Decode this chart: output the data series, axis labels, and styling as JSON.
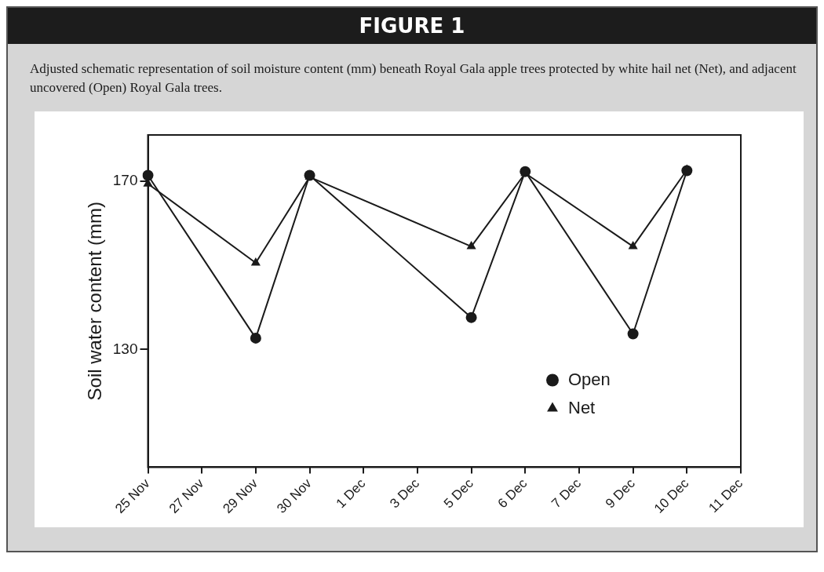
{
  "chart_data": {
    "type": "line",
    "title": "FIGURE 1",
    "subtitle": "Adjusted schematic representation of soil moisture content (mm) beneath Royal Gala apple trees protected by white hail net (Net), and adjacent uncovered (Open) Royal Gala trees.",
    "ylabel": "Soil water content (mm)",
    "categories": [
      "25 Nov",
      "27 Nov",
      "29 Nov",
      "30 Nov",
      "1 Dec",
      "3 Dec",
      "5 Dec",
      "6 Dec",
      "7 Dec",
      "9 Dec",
      "10 Dec",
      "11 Dec"
    ],
    "ylim": [
      102,
      181
    ],
    "yticks": [
      130,
      170
    ],
    "series": [
      {
        "name": "Open",
        "color": "#1a1a1a",
        "marker": "circle",
        "values": [
          171.4,
          null,
          132.7,
          171.4,
          null,
          null,
          137.6,
          172.3,
          null,
          133.7,
          172.5,
          null
        ]
      },
      {
        "name": "Net",
        "color": "#1a1a1a",
        "marker": "triangle",
        "values": [
          169.4,
          null,
          150.6,
          171,
          null,
          null,
          154.5,
          171.9,
          null,
          154.5,
          172.7,
          null
        ]
      }
    ],
    "grid": false,
    "legend": "bottom right",
    "line_style": "solid"
  }
}
